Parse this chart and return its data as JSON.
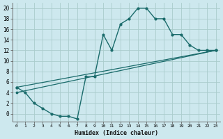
{
  "title": "",
  "xlabel": "Humidex (Indice chaleur)",
  "bg_color": "#cde8ee",
  "grid_color": "#aacccc",
  "line_color": "#1a6b6b",
  "xlim": [
    -0.5,
    23.5
  ],
  "ylim": [
    -1.5,
    21
  ],
  "xticks": [
    0,
    1,
    2,
    3,
    4,
    5,
    6,
    7,
    8,
    9,
    10,
    11,
    12,
    13,
    14,
    15,
    16,
    17,
    18,
    19,
    20,
    21,
    22,
    23
  ],
  "yticks": [
    0,
    2,
    4,
    6,
    8,
    10,
    12,
    14,
    16,
    18,
    20
  ],
  "curve_x": [
    0,
    1,
    2,
    3,
    4,
    5,
    6,
    7,
    8,
    9,
    10,
    11,
    12,
    13,
    14,
    15,
    16,
    17,
    18,
    19,
    20,
    21,
    22,
    23
  ],
  "curve_y": [
    5,
    4,
    2,
    1,
    0,
    -0.5,
    -0.5,
    -1,
    7,
    7,
    15,
    12,
    17,
    18,
    20,
    20,
    18,
    18,
    15,
    15,
    13,
    12,
    12,
    12
  ],
  "line1_x": [
    0,
    23
  ],
  "line1_y": [
    5,
    12
  ],
  "line2_x": [
    0,
    23
  ],
  "line2_y": [
    4,
    12
  ]
}
